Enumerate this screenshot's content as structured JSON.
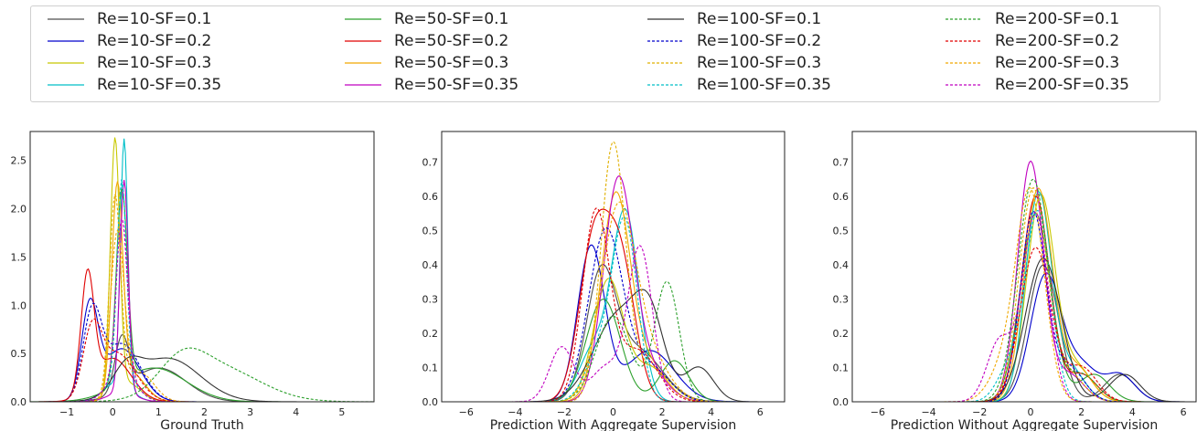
{
  "legend": {
    "entries": [
      {
        "label": "Re=10-SF=0.1",
        "color": "#4d4d4d",
        "dash": false
      },
      {
        "label": "Re=10-SF=0.2",
        "color": "#0000cc",
        "dash": false
      },
      {
        "label": "Re=10-SF=0.3",
        "color": "#c8c800",
        "dash": false
      },
      {
        "label": "Re=10-SF=0.35",
        "color": "#00bfc8",
        "dash": false
      },
      {
        "label": "Re=50-SF=0.1",
        "color": "#2ca02c",
        "dash": false
      },
      {
        "label": "Re=50-SF=0.2",
        "color": "#e00000",
        "dash": false
      },
      {
        "label": "Re=50-SF=0.3",
        "color": "#f0a800",
        "dash": false
      },
      {
        "label": "Re=50-SF=0.35",
        "color": "#c000c0",
        "dash": false
      },
      {
        "label": "Re=100-SF=0.1",
        "color": "#333333",
        "dash": false
      },
      {
        "label": "Re=100-SF=0.2",
        "color": "#0000cc",
        "dash": true
      },
      {
        "label": "Re=100-SF=0.3",
        "color": "#e0b000",
        "dash": true
      },
      {
        "label": "Re=100-SF=0.35",
        "color": "#00bfc8",
        "dash": true
      },
      {
        "label": "Re=200-SF=0.1",
        "color": "#2ca02c",
        "dash": true
      },
      {
        "label": "Re=200-SF=0.2",
        "color": "#e00000",
        "dash": true
      },
      {
        "label": "Re=200-SF=0.3",
        "color": "#f0a800",
        "dash": true
      },
      {
        "label": "Re=200-SF=0.35",
        "color": "#c000c0",
        "dash": true
      }
    ]
  },
  "chart_data": [
    {
      "type": "line",
      "xlabel": "Ground Truth",
      "xlim": [
        -1.8,
        5.7
      ],
      "ylim": [
        0,
        2.8
      ],
      "xticks": [
        -1,
        0,
        1,
        2,
        3,
        4,
        5
      ],
      "yticks": [
        0.0,
        0.5,
        1.0,
        1.5,
        2.0,
        2.5
      ],
      "series": [
        {
          "legend": 0,
          "comps": [
            [
              0.2,
              0.15,
              0.55
            ],
            [
              1.0,
              0.6,
              0.35
            ]
          ]
        },
        {
          "legend": 1,
          "comps": [
            [
              -0.5,
              0.18,
              0.95
            ],
            [
              0.2,
              0.4,
              0.55
            ]
          ]
        },
        {
          "legend": 2,
          "comps": [
            [
              0.05,
              0.1,
              2.6
            ],
            [
              0.3,
              0.3,
              0.2
            ]
          ]
        },
        {
          "legend": 3,
          "comps": [
            [
              0.25,
              0.08,
              2.55
            ],
            [
              0.1,
              0.3,
              0.2
            ]
          ]
        },
        {
          "legend": 4,
          "comps": [
            [
              0.2,
              0.12,
              2.0
            ],
            [
              0.9,
              0.7,
              0.35
            ]
          ]
        },
        {
          "legend": 5,
          "comps": [
            [
              -0.55,
              0.14,
              1.2
            ],
            [
              0.0,
              0.4,
              0.45
            ]
          ]
        },
        {
          "legend": 6,
          "comps": [
            [
              0.1,
              0.12,
              2.1
            ],
            [
              0.4,
              0.3,
              0.3
            ]
          ]
        },
        {
          "legend": 7,
          "comps": [
            [
              0.25,
              0.09,
              2.2
            ],
            [
              0.2,
              0.3,
              0.1
            ]
          ]
        },
        {
          "legend": 8,
          "comps": [
            [
              0.3,
              0.3,
              0.25
            ],
            [
              1.2,
              0.7,
              0.45
            ]
          ]
        },
        {
          "legend": 9,
          "comps": [
            [
              -0.45,
              0.2,
              0.85
            ],
            [
              0.2,
              0.4,
              0.6
            ]
          ]
        },
        {
          "legend": 10,
          "comps": [
            [
              0.05,
              0.12,
              2.0
            ],
            [
              0.4,
              0.3,
              0.3
            ]
          ]
        },
        {
          "legend": 11,
          "comps": [
            [
              0.2,
              0.1,
              2.0
            ],
            [
              0.2,
              0.3,
              0.3
            ]
          ]
        },
        {
          "legend": 12,
          "comps": [
            [
              1.5,
              0.5,
              0.3
            ],
            [
              2.3,
              0.9,
              0.35
            ]
          ]
        },
        {
          "legend": 13,
          "comps": [
            [
              -0.45,
              0.2,
              0.65
            ],
            [
              0.1,
              0.4,
              0.5
            ]
          ]
        },
        {
          "legend": 14,
          "comps": [
            [
              0.1,
              0.15,
              1.7
            ],
            [
              0.6,
              0.3,
              0.3
            ]
          ]
        },
        {
          "legend": 15,
          "comps": [
            [
              0.2,
              0.12,
              1.6
            ],
            [
              0.2,
              0.3,
              0.3
            ]
          ]
        }
      ]
    },
    {
      "type": "line",
      "xlabel": "Prediction With Aggregate Supervision",
      "xlim": [
        -7,
        7
      ],
      "ylim": [
        0,
        0.79
      ],
      "xticks": [
        -6,
        -4,
        -2,
        0,
        2,
        4,
        6
      ],
      "yticks": [
        0.0,
        0.1,
        0.2,
        0.3,
        0.4,
        0.5,
        0.6,
        0.7
      ],
      "series": [
        {
          "legend": 0,
          "comps": [
            [
              -0.5,
              0.6,
              0.35
            ],
            [
              1.0,
              1.0,
              0.15
            ]
          ]
        },
        {
          "legend": 1,
          "comps": [
            [
              -0.9,
              0.55,
              0.45
            ],
            [
              1.5,
              1.0,
              0.15
            ]
          ]
        },
        {
          "legend": 2,
          "comps": [
            [
              -0.2,
              0.6,
              0.35
            ],
            [
              1.5,
              0.8,
              0.1
            ]
          ]
        },
        {
          "legend": 3,
          "comps": [
            [
              0.5,
              0.55,
              0.55
            ],
            [
              -0.8,
              0.6,
              0.15
            ]
          ]
        },
        {
          "legend": 4,
          "comps": [
            [
              -0.4,
              0.7,
              0.3
            ],
            [
              2.5,
              0.6,
              0.12
            ]
          ]
        },
        {
          "legend": 5,
          "comps": [
            [
              -0.8,
              0.6,
              0.45
            ],
            [
              0.3,
              0.6,
              0.4
            ]
          ]
        },
        {
          "legend": 6,
          "comps": [
            [
              0.1,
              0.6,
              0.6
            ],
            [
              1.5,
              0.7,
              0.1
            ]
          ]
        },
        {
          "legend": 7,
          "comps": [
            [
              0.2,
              0.6,
              0.62
            ],
            [
              1.3,
              0.8,
              0.1
            ]
          ]
        },
        {
          "legend": 8,
          "comps": [
            [
              0.2,
              1.0,
              0.25
            ],
            [
              1.5,
              0.6,
              0.2
            ],
            [
              3.5,
              0.6,
              0.1
            ]
          ]
        },
        {
          "legend": 9,
          "comps": [
            [
              -0.3,
              0.7,
              0.5
            ],
            [
              1.5,
              0.8,
              0.1
            ]
          ]
        },
        {
          "legend": 10,
          "comps": [
            [
              0.0,
              0.5,
              0.75
            ],
            [
              1.5,
              0.7,
              0.1
            ]
          ]
        },
        {
          "legend": 11,
          "comps": [
            [
              0.5,
              0.5,
              0.5
            ],
            [
              -0.5,
              0.6,
              0.15
            ]
          ]
        },
        {
          "legend": 12,
          "comps": [
            [
              0.0,
              0.7,
              0.25
            ],
            [
              2.2,
              0.5,
              0.35
            ]
          ]
        },
        {
          "legend": 13,
          "comps": [
            [
              -0.7,
              0.55,
              0.55
            ],
            [
              1.0,
              0.8,
              0.15
            ]
          ]
        },
        {
          "legend": 14,
          "comps": [
            [
              0.2,
              0.7,
              0.55
            ],
            [
              1.5,
              0.8,
              0.12
            ]
          ]
        },
        {
          "legend": 15,
          "comps": [
            [
              -2.1,
              0.5,
              0.16
            ],
            [
              1.1,
              0.5,
              0.45
            ],
            [
              -0.3,
              0.6,
              0.1
            ]
          ]
        }
      ]
    },
    {
      "type": "line",
      "xlabel": "Prediction Without Aggregate Supervision",
      "xlim": [
        -7,
        6.5
      ],
      "ylim": [
        0,
        0.79
      ],
      "xticks": [
        -6,
        -4,
        -2,
        0,
        2,
        4,
        6
      ],
      "yticks": [
        0.0,
        0.1,
        0.2,
        0.3,
        0.4,
        0.5,
        0.6,
        0.7
      ],
      "series": [
        {
          "legend": 0,
          "comps": [
            [
              0.5,
              0.6,
              0.4
            ],
            [
              3.5,
              0.6,
              0.08
            ]
          ]
        },
        {
          "legend": 1,
          "comps": [
            [
              0.6,
              0.6,
              0.37
            ],
            [
              2.0,
              0.6,
              0.1
            ],
            [
              3.5,
              0.6,
              0.08
            ]
          ]
        },
        {
          "legend": 2,
          "comps": [
            [
              0.4,
              0.55,
              0.6
            ],
            [
              1.8,
              0.6,
              0.1
            ]
          ]
        },
        {
          "legend": 3,
          "comps": [
            [
              0.3,
              0.5,
              0.6
            ],
            [
              1.5,
              0.6,
              0.1
            ]
          ]
        },
        {
          "legend": 4,
          "comps": [
            [
              0.2,
              0.6,
              0.55
            ],
            [
              2.5,
              0.6,
              0.08
            ]
          ]
        },
        {
          "legend": 5,
          "comps": [
            [
              0.2,
              0.55,
              0.6
            ],
            [
              2.0,
              0.6,
              0.08
            ]
          ]
        },
        {
          "legend": 6,
          "comps": [
            [
              0.3,
              0.55,
              0.62
            ],
            [
              1.8,
              0.6,
              0.1
            ]
          ]
        },
        {
          "legend": 7,
          "comps": [
            [
              0.0,
              0.5,
              0.7
            ],
            [
              1.5,
              0.6,
              0.08
            ]
          ]
        },
        {
          "legend": 8,
          "comps": [
            [
              0.5,
              0.7,
              0.42
            ],
            [
              3.7,
              0.6,
              0.08
            ]
          ]
        },
        {
          "legend": 9,
          "comps": [
            [
              0.1,
              0.5,
              0.55
            ],
            [
              1.5,
              0.6,
              0.1
            ]
          ]
        },
        {
          "legend": 10,
          "comps": [
            [
              0.1,
              0.55,
              0.62
            ],
            [
              1.5,
              0.6,
              0.08
            ]
          ]
        },
        {
          "legend": 11,
          "comps": [
            [
              0.3,
              0.5,
              0.55
            ],
            [
              -0.8,
              0.5,
              0.1
            ]
          ]
        },
        {
          "legend": 12,
          "comps": [
            [
              0.1,
              0.6,
              0.65
            ],
            [
              2.0,
              0.6,
              0.08
            ]
          ]
        },
        {
          "legend": 13,
          "comps": [
            [
              0.2,
              0.6,
              0.45
            ],
            [
              2.0,
              0.6,
              0.1
            ]
          ]
        },
        {
          "legend": 14,
          "comps": [
            [
              0.0,
              0.55,
              0.6
            ],
            [
              -1.0,
              0.6,
              0.1
            ]
          ]
        },
        {
          "legend": 15,
          "comps": [
            [
              -1.2,
              0.5,
              0.18
            ],
            [
              0.2,
              0.5,
              0.55
            ]
          ]
        }
      ]
    }
  ]
}
